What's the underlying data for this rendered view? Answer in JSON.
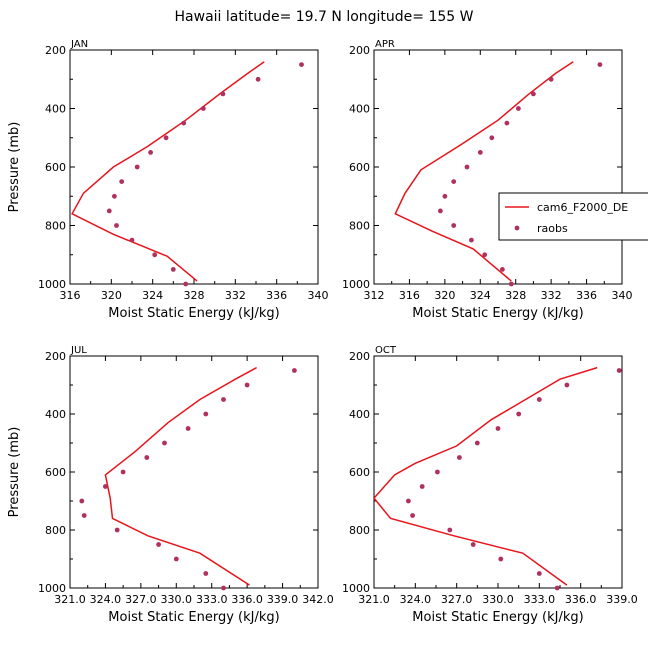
{
  "title": "Hawaii  latitude= 19.7 N longitude= 155 W",
  "colors": {
    "model": "#e8141c",
    "obs": "#b03060",
    "axis": "#000000"
  },
  "legend": {
    "model_label": "cam6_F2000_DE",
    "obs_label": "raobs"
  },
  "chart_data": [
    {
      "type": "line+scatter",
      "panel": "JAN",
      "xlabel": "Moist Static Energy (kJ/kg)",
      "ylabel": "Pressure (mb)",
      "xlim": [
        316,
        340
      ],
      "ylim": [
        200,
        1000
      ],
      "xticks": [
        "316",
        "320",
        "324",
        "328",
        "332",
        "336",
        "340"
      ],
      "yticks": [
        "200",
        "400",
        "600",
        "800",
        "1000"
      ],
      "series": [
        {
          "name": "cam6_F2000_DE",
          "style": "line",
          "points": [
            [
              334.8,
              240
            ],
            [
              333.2,
              280
            ],
            [
              330.5,
              350
            ],
            [
              327.2,
              440
            ],
            [
              323.5,
              530
            ],
            [
              320.2,
              600
            ],
            [
              317.3,
              690
            ],
            [
              316.2,
              760
            ],
            [
              320.2,
              830
            ],
            [
              325.4,
              905
            ],
            [
              328.3,
              990
            ]
          ]
        },
        {
          "name": "raobs",
          "style": "markers",
          "points": [
            [
              338.4,
              250
            ],
            [
              334.2,
              300
            ],
            [
              330.8,
              350
            ],
            [
              328.9,
              400
            ],
            [
              327.0,
              450
            ],
            [
              325.3,
              500
            ],
            [
              323.8,
              550
            ],
            [
              322.5,
              600
            ],
            [
              321.0,
              650
            ],
            [
              320.3,
              700
            ],
            [
              319.8,
              750
            ],
            [
              320.5,
              800
            ],
            [
              322.0,
              850
            ],
            [
              324.2,
              900
            ],
            [
              326.0,
              950
            ],
            [
              327.2,
              1000
            ]
          ]
        }
      ]
    },
    {
      "type": "line+scatter",
      "panel": "APR",
      "xlabel": "Moist Static Energy (kJ/kg)",
      "ylabel": "",
      "xlim": [
        312,
        340
      ],
      "ylim": [
        200,
        1000
      ],
      "xticks": [
        "312",
        "316",
        "320",
        "324",
        "328",
        "332",
        "336",
        "340"
      ],
      "yticks": [
        "200",
        "400",
        "600",
        "800",
        "1000"
      ],
      "legend": true,
      "series": [
        {
          "name": "cam6_F2000_DE",
          "style": "line",
          "points": [
            [
              334.5,
              240
            ],
            [
              332.5,
              280
            ],
            [
              329.5,
              350
            ],
            [
              326.0,
              440
            ],
            [
              322.0,
              520
            ],
            [
              317.3,
              610
            ],
            [
              315.5,
              690
            ],
            [
              314.4,
              760
            ],
            [
              318.6,
              820
            ],
            [
              323.2,
              880
            ],
            [
              327.5,
              990
            ]
          ]
        },
        {
          "name": "raobs",
          "style": "markers",
          "points": [
            [
              337.5,
              250
            ],
            [
              332.0,
              300
            ],
            [
              330.0,
              350
            ],
            [
              328.3,
              400
            ],
            [
              327.0,
              450
            ],
            [
              325.3,
              500
            ],
            [
              324.0,
              550
            ],
            [
              322.5,
              600
            ],
            [
              321.0,
              650
            ],
            [
              320.0,
              700
            ],
            [
              319.5,
              750
            ],
            [
              321.0,
              800
            ],
            [
              323.0,
              850
            ],
            [
              324.5,
              900
            ],
            [
              326.5,
              950
            ],
            [
              327.5,
              1000
            ]
          ]
        }
      ]
    },
    {
      "type": "line+scatter",
      "panel": "JUL",
      "xlabel": "Moist Static Energy (kJ/kg)",
      "ylabel": "Pressure (mb)",
      "xlim": [
        321.0,
        342.0
      ],
      "ylim": [
        200,
        1000
      ],
      "xticks": [
        "321.0",
        "324.0",
        "327.0",
        "330.0",
        "333.0",
        "336.0",
        "339.0",
        "342.0"
      ],
      "yticks": [
        "200",
        "400",
        "600",
        "800",
        "1000"
      ],
      "series": [
        {
          "name": "cam6_F2000_DE",
          "style": "line",
          "points": [
            [
              336.8,
              240
            ],
            [
              335.0,
              280
            ],
            [
              332.0,
              350
            ],
            [
              329.3,
              430
            ],
            [
              326.5,
              530
            ],
            [
              324.0,
              610
            ],
            [
              324.4,
              690
            ],
            [
              324.6,
              760
            ],
            [
              327.6,
              820
            ],
            [
              332.0,
              880
            ],
            [
              336.2,
              990
            ]
          ]
        },
        {
          "name": "raobs",
          "style": "markers",
          "points": [
            [
              340.0,
              250
            ],
            [
              336.0,
              300
            ],
            [
              334.0,
              350
            ],
            [
              332.5,
              400
            ],
            [
              331.0,
              450
            ],
            [
              329.0,
              500
            ],
            [
              327.5,
              550
            ],
            [
              325.5,
              600
            ],
            [
              324.0,
              650
            ],
            [
              322.0,
              700
            ],
            [
              322.2,
              750
            ],
            [
              325.0,
              800
            ],
            [
              328.5,
              850
            ],
            [
              330.0,
              900
            ],
            [
              332.5,
              950
            ],
            [
              334.0,
              1000
            ]
          ]
        }
      ]
    },
    {
      "type": "line+scatter",
      "panel": "OCT",
      "xlabel": "Moist Static Energy (kJ/kg)",
      "ylabel": "",
      "xlim": [
        321.0,
        339.0
      ],
      "ylim": [
        200,
        1000
      ],
      "xticks": [
        "321.0",
        "324.0",
        "327.0",
        "330.0",
        "333.0",
        "336.0",
        "339.0"
      ],
      "yticks": [
        "200",
        "400",
        "600",
        "800",
        "1000"
      ],
      "series": [
        {
          "name": "cam6_F2000_DE",
          "style": "line",
          "points": [
            [
              337.2,
              240
            ],
            [
              334.5,
              280
            ],
            [
              332.0,
              350
            ],
            [
              329.5,
              420
            ],
            [
              327.0,
              510
            ],
            [
              324.0,
              570
            ],
            [
              322.5,
              610
            ],
            [
              321.0,
              690
            ],
            [
              322.2,
              760
            ],
            [
              326.8,
              820
            ],
            [
              331.8,
              880
            ],
            [
              335.0,
              990
            ]
          ]
        },
        {
          "name": "raobs",
          "style": "markers",
          "points": [
            [
              338.8,
              250
            ],
            [
              335.0,
              300
            ],
            [
              333.0,
              350
            ],
            [
              331.5,
              400
            ],
            [
              330.0,
              450
            ],
            [
              328.5,
              500
            ],
            [
              327.2,
              550
            ],
            [
              325.6,
              600
            ],
            [
              324.5,
              650
            ],
            [
              323.5,
              700
            ],
            [
              323.8,
              750
            ],
            [
              326.5,
              800
            ],
            [
              328.2,
              850
            ],
            [
              330.2,
              900
            ],
            [
              333.0,
              950
            ],
            [
              334.3,
              1000
            ]
          ]
        }
      ]
    }
  ]
}
